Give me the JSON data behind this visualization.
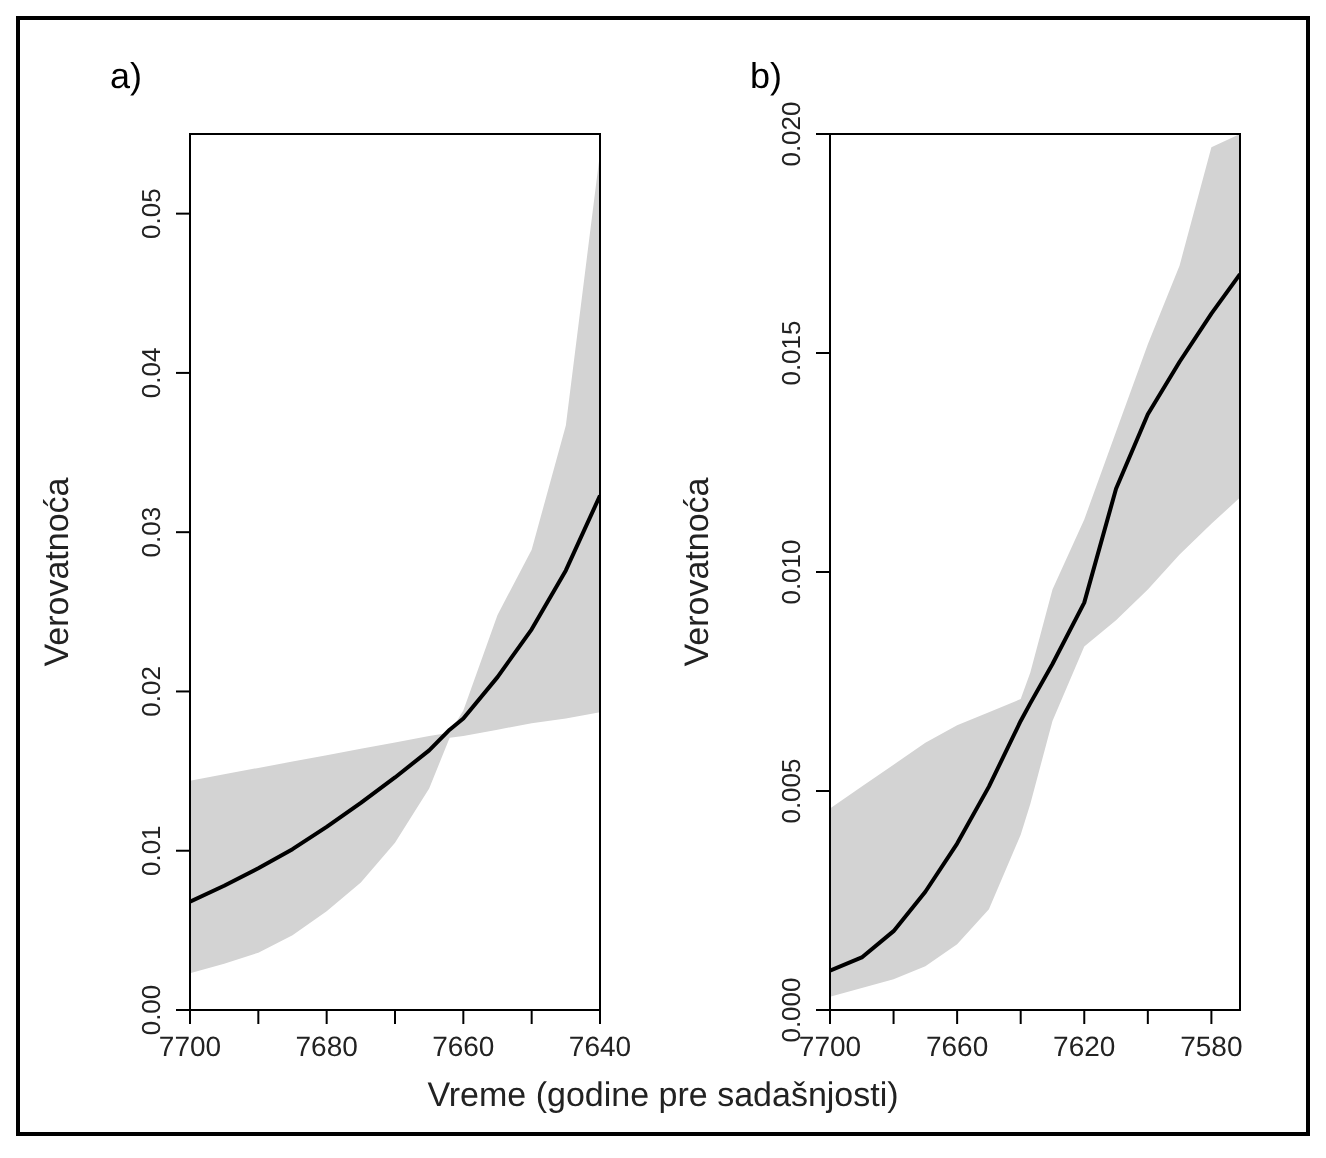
{
  "chart_data": [
    {
      "type": "line",
      "title": "a)",
      "xlabel": "Vreme (godine pre sadašnjosti)",
      "ylabel": "Verovatnoća",
      "xlim": [
        7700,
        7640
      ],
      "xticks": [
        7700,
        {
          "value": 7690,
          "label": null
        },
        7680,
        {
          "value": 7670,
          "label": null
        },
        7660,
        {
          "value": 7650,
          "label": null
        },
        7640
      ],
      "ylim": [
        0,
        0.055
      ],
      "yticks": [
        {
          "value": 0,
          "label": "0.00"
        },
        {
          "value": 0.01,
          "label": "0.01"
        },
        {
          "value": 0.02,
          "label": "0.02"
        },
        {
          "value": 0.03,
          "label": "0.03"
        },
        {
          "value": 0.04,
          "label": "0.04"
        },
        {
          "value": 0.05,
          "label": "0.05"
        }
      ],
      "grid": false,
      "legend": false,
      "marker": "none",
      "line_style": "solid",
      "series": [
        {
          "color": "#000000",
          "x": [
            7700,
            7695,
            7690,
            7685,
            7680,
            7675,
            7670,
            7665,
            7662,
            7660,
            7655,
            7650,
            7645,
            7640
          ],
          "values": [
            0.0068,
            0.0078,
            0.0089,
            0.0101,
            0.0115,
            0.013,
            0.0146,
            0.0163,
            0.0176,
            0.0183,
            0.0209,
            0.0239,
            0.0276,
            0.0323
          ],
          "lower": [
            0.0023,
            0.0029,
            0.0036,
            0.0047,
            0.0062,
            0.008,
            0.0105,
            0.0139,
            0.0171,
            0.0172,
            0.0176,
            0.018,
            0.0183,
            0.0187
          ],
          "upper": [
            0.0144,
            0.0148,
            0.0152,
            0.0156,
            0.016,
            0.0164,
            0.0168,
            0.0172,
            0.0174,
            0.0188,
            0.0248,
            0.0289,
            0.0367,
            0.0538
          ]
        }
      ]
    },
    {
      "type": "line",
      "title": "b)",
      "ylabel": "Verovatnoća",
      "xlim": [
        7700,
        7571
      ],
      "xticks": [
        7700,
        {
          "value": 7680,
          "label": null
        },
        7660,
        {
          "value": 7640,
          "label": null
        },
        7620,
        {
          "value": 7600,
          "label": null
        },
        7580
      ],
      "ylim": [
        0,
        0.02
      ],
      "yticks": [
        {
          "value": 0,
          "label": "0.000"
        },
        {
          "value": 0.005,
          "label": "0.005"
        },
        {
          "value": 0.01,
          "label": "0.010"
        },
        {
          "value": 0.015,
          "label": "0.015"
        },
        {
          "value": 0.02,
          "label": "0.020"
        }
      ],
      "grid": false,
      "legend": false,
      "marker": "none",
      "line_style": "solid",
      "series": [
        {
          "color": "#000000",
          "x": [
            7700,
            7690,
            7680,
            7670,
            7660,
            7650,
            7640,
            7637,
            7630,
            7620,
            7610,
            7600,
            7590,
            7580,
            7571
          ],
          "values": [
            0.0009,
            0.0012,
            0.0018,
            0.0027,
            0.0038,
            0.0051,
            0.0066,
            0.007,
            0.0079,
            0.0093,
            0.0119,
            0.0136,
            0.0148,
            0.0159,
            0.0168
          ],
          "lower": [
            0.0003,
            0.0005,
            0.0007,
            0.001,
            0.0015,
            0.0023,
            0.004,
            0.0047,
            0.0066,
            0.0083,
            0.0089,
            0.0096,
            0.0104,
            0.0111,
            0.0117
          ],
          "upper": [
            0.0046,
            0.0051,
            0.0056,
            0.0061,
            0.0065,
            0.0068,
            0.0071,
            0.0077,
            0.0096,
            0.0112,
            0.0132,
            0.0152,
            0.017,
            0.0197,
            0.02
          ]
        }
      ]
    }
  ]
}
